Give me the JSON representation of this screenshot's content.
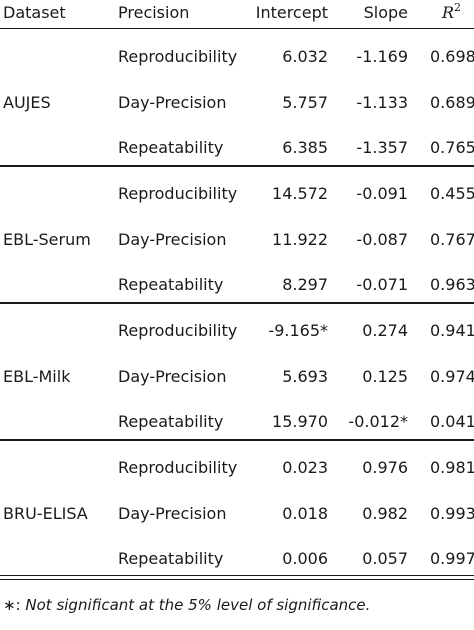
{
  "table": {
    "headers": {
      "dataset": "Dataset",
      "precision": "Precision",
      "intercept": "Intercept",
      "slope": "Slope",
      "r2_symbol": "R",
      "r2_exponent": "2"
    },
    "groups": [
      {
        "dataset": "AUJES",
        "rows": [
          {
            "precision": "Reproducibility",
            "intercept": "6.032",
            "slope": "-1.169",
            "r2": "0.698"
          },
          {
            "precision": "Day-Precision",
            "intercept": "5.757",
            "slope": "-1.133",
            "r2": "0.689"
          },
          {
            "precision": "Repeatability",
            "intercept": "6.385",
            "slope": "-1.357",
            "r2": "0.765"
          }
        ]
      },
      {
        "dataset": "EBL-Serum",
        "rows": [
          {
            "precision": "Reproducibility",
            "intercept": "14.572",
            "slope": "-0.091",
            "r2": "0.455"
          },
          {
            "precision": "Day-Precision",
            "intercept": "11.922",
            "slope": "-0.087",
            "r2": "0.767"
          },
          {
            "precision": "Repeatability",
            "intercept": "8.297",
            "slope": "-0.071",
            "r2": "0.963"
          }
        ]
      },
      {
        "dataset": "EBL-Milk",
        "rows": [
          {
            "precision": "Reproducibility",
            "intercept": "-9.165*",
            "slope": "0.274",
            "r2": "0.941"
          },
          {
            "precision": "Day-Precision",
            "intercept": "5.693",
            "slope": "0.125",
            "r2": "0.974"
          },
          {
            "precision": "Repeatability",
            "intercept": "15.970",
            "slope": "-0.012*",
            "r2": "0.041"
          }
        ]
      },
      {
        "dataset": "BRU-ELISA",
        "rows": [
          {
            "precision": "Reproducibility",
            "intercept": "0.023",
            "slope": "0.976",
            "r2": "0.981"
          },
          {
            "precision": "Day-Precision",
            "intercept": "0.018",
            "slope": "0.982",
            "r2": "0.993"
          },
          {
            "precision": "Repeatability",
            "intercept": "0.006",
            "slope": "0.057",
            "r2": "0.997"
          }
        ]
      }
    ]
  },
  "footnote": {
    "symbol": "∗:",
    "text": "Not significant at the 5% level of significance."
  }
}
